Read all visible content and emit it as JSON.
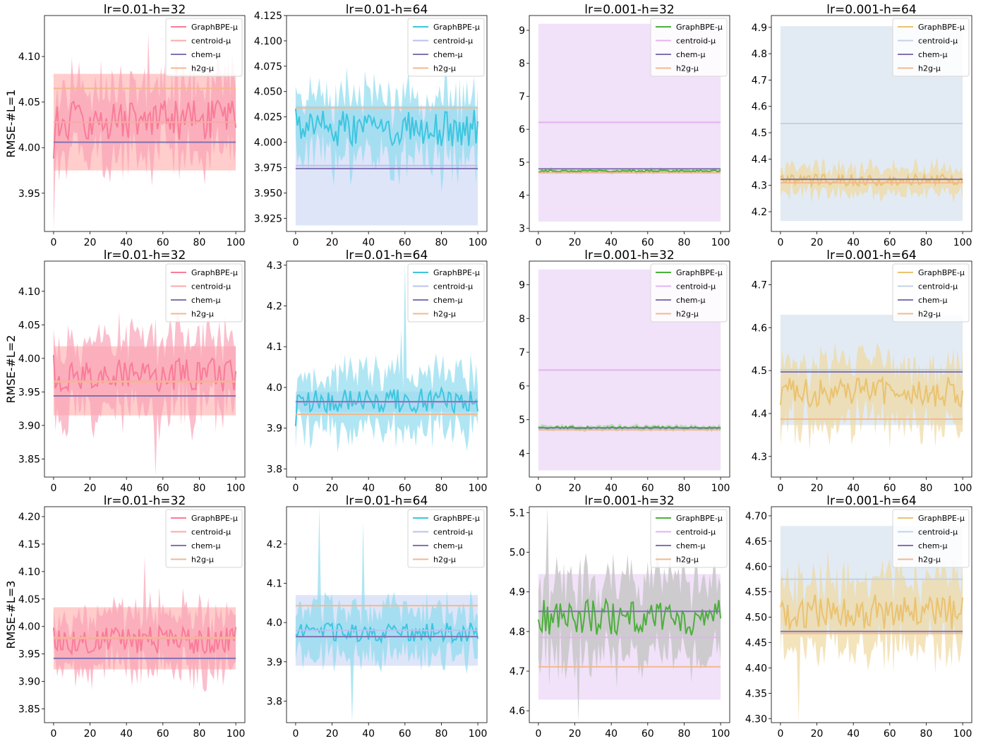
{
  "figure": {
    "row_labels": [
      "RMSE-#L=1",
      "RMSE-#L=2",
      "RMSE-#L=3"
    ],
    "col_titles": [
      "lr=0.01-h=32",
      "lr=0.01-h=64",
      "lr=0.001-h=32",
      "lr=0.001-h=64"
    ],
    "legend_labels": [
      "GraphBPE-μ",
      "centroid-μ",
      "chem-μ",
      "h2g-μ"
    ]
  },
  "chart_data": [
    {
      "type": "line",
      "title": "lr=0.01-h=32",
      "ylabel": "RMSE-#L=1",
      "xlim": [
        -5,
        105
      ],
      "ylim": [
        3.908,
        4.145
      ],
      "xticks": [
        0,
        20,
        40,
        60,
        80,
        100
      ],
      "yticks": [
        3.95,
        4.0,
        4.05,
        4.1
      ],
      "yticklabels": [
        "3.95",
        "4.00",
        "4.05",
        "4.10"
      ],
      "legend": "top-right",
      "colors": {
        "graphbpe": "#f97c97",
        "graphbpe_band": "#f9a3b6",
        "centroid": "#f8aaa8",
        "centroid_band": "#ffc4c2",
        "chem": "#8172b2",
        "h2g": "#f2b98e"
      },
      "series": {
        "graphbpe": {
          "name": "GraphBPE-μ",
          "mean": 4.03,
          "amp": 0.022,
          "band": 0.04,
          "seed": 11,
          "start": 3.988,
          "band_extra": [
            [
              0,
              -0.07
            ],
            [
              52,
              0.05
            ]
          ]
        },
        "centroid": {
          "name": "centroid-μ",
          "value": 4.028,
          "band": [
            3.975,
            4.081
          ]
        },
        "chem": {
          "name": "chem-μ",
          "value": 4.006
        },
        "h2g": {
          "name": "h2g-μ",
          "value": 4.065
        }
      }
    },
    {
      "type": "line",
      "title": "lr=0.01-h=64",
      "xlim": [
        -5,
        105
      ],
      "ylim": [
        3.912,
        4.125
      ],
      "xticks": [
        0,
        20,
        40,
        60,
        80,
        100
      ],
      "yticks": [
        3.925,
        3.95,
        3.975,
        4.0,
        4.025,
        4.05,
        4.075,
        4.1,
        4.125
      ],
      "yticklabels": [
        "3.925",
        "3.950",
        "3.975",
        "4.000",
        "4.025",
        "4.050",
        "4.075",
        "4.100",
        "4.125"
      ],
      "legend": "top-right",
      "colors": {
        "graphbpe": "#3cc6e0",
        "graphbpe_band": "#8fdcee",
        "centroid": "#b6c3ef",
        "centroid_band": "#d8e0f8",
        "chem": "#8172b2",
        "h2g": "#f2b98e"
      },
      "series": {
        "graphbpe": {
          "name": "GraphBPE-μ",
          "mean": 4.014,
          "amp": 0.018,
          "band": 0.032,
          "seed": 23,
          "start": 4.033,
          "band_extra": []
        },
        "centroid": {
          "name": "centroid-μ",
          "value": 3.977,
          "band": [
            3.918,
            4.036
          ]
        },
        "chem": {
          "name": "chem-μ",
          "value": 3.974
        },
        "h2g": {
          "name": "h2g-μ",
          "value": 4.034
        }
      }
    },
    {
      "type": "line",
      "title": "lr=0.001-h=32",
      "xlim": [
        -5,
        105
      ],
      "ylim": [
        2.9,
        9.45
      ],
      "xticks": [
        0,
        20,
        40,
        60,
        80,
        100
      ],
      "yticks": [
        3,
        4,
        5,
        6,
        7,
        8,
        9
      ],
      "yticklabels": [
        "3",
        "4",
        "5",
        "6",
        "7",
        "8",
        "9"
      ],
      "legend": "top-right",
      "colors": {
        "graphbpe": "#4daf3c",
        "graphbpe_band": "#a3d99a",
        "centroid": "#e2b4f0",
        "centroid_band": "#eedcf8",
        "chem": "#8172b2",
        "h2g": "#f2b98e"
      },
      "series": {
        "graphbpe": {
          "name": "GraphBPE-μ",
          "mean": 4.73,
          "amp": 0.035,
          "band": 0.06,
          "seed": 31,
          "start": 4.7,
          "band_extra": []
        },
        "centroid": {
          "name": "centroid-μ",
          "value": 6.21,
          "band": [
            3.2,
            9.2
          ]
        },
        "chem": {
          "name": "chem-μ",
          "value": 4.8
        },
        "h2g": {
          "name": "h2g-μ",
          "value": 4.68
        }
      }
    },
    {
      "type": "line",
      "title": "lr=0.001-h=64",
      "xlim": [
        -5,
        105
      ],
      "ylim": [
        4.125,
        4.945
      ],
      "xticks": [
        0,
        20,
        40,
        60,
        80,
        100
      ],
      "yticks": [
        4.2,
        4.3,
        4.4,
        4.5,
        4.6,
        4.7,
        4.8,
        4.9
      ],
      "yticklabels": [
        "4.2",
        "4.3",
        "4.4",
        "4.5",
        "4.6",
        "4.7",
        "4.8",
        "4.9"
      ],
      "legend": "top-right",
      "colors": {
        "graphbpe": "#ebc26e",
        "graphbpe_band": "#efd9a0",
        "centroid": "#bfd3e6",
        "centroid_band": "#dde8f2",
        "chem": "#8172b2",
        "h2g": "#f2b98e"
      },
      "series": {
        "graphbpe": {
          "name": "GraphBPE-μ",
          "mean": 4.32,
          "amp": 0.022,
          "band": 0.05,
          "seed": 41,
          "start": 4.33,
          "band_extra": []
        },
        "centroid": {
          "name": "centroid-μ",
          "value": 4.535,
          "band": [
            4.165,
            4.905
          ]
        },
        "chem": {
          "name": "chem-μ",
          "value": 4.323
        },
        "h2g": {
          "name": "h2g-μ",
          "value": 4.31
        }
      }
    },
    {
      "type": "line",
      "title": "lr=0.01-h=32",
      "ylabel": "RMSE-#L=2",
      "xlim": [
        -5,
        105
      ],
      "ylim": [
        3.823,
        4.145
      ],
      "xticks": [
        0,
        20,
        40,
        60,
        80,
        100
      ],
      "yticks": [
        3.85,
        3.9,
        3.95,
        4.0,
        4.05,
        4.1
      ],
      "yticklabels": [
        "3.85",
        "3.90",
        "3.95",
        "4.00",
        "4.05",
        "4.10"
      ],
      "legend": "top-right",
      "colors": {
        "graphbpe": "#f97c97",
        "graphbpe_band": "#f9a3b6",
        "centroid": "#f8aaa8",
        "centroid_band": "#ffc4c2",
        "chem": "#8172b2",
        "h2g": "#f2b98e"
      },
      "series": {
        "graphbpe": {
          "name": "GraphBPE-μ",
          "mean": 3.975,
          "amp": 0.025,
          "band": 0.055,
          "seed": 53,
          "start": 4.005,
          "band_extra": [
            [
              8,
              0.06
            ],
            [
              56,
              -0.08
            ]
          ]
        },
        "centroid": {
          "name": "centroid-μ",
          "value": 3.966,
          "band": [
            3.915,
            4.018
          ]
        },
        "chem": {
          "name": "chem-μ",
          "value": 3.944
        },
        "h2g": {
          "name": "h2g-μ",
          "value": 3.965
        }
      }
    },
    {
      "type": "line",
      "title": "lr=0.01-h=64",
      "xlim": [
        -5,
        105
      ],
      "ylim": [
        3.78,
        4.31
      ],
      "xticks": [
        0,
        20,
        40,
        60,
        80,
        100
      ],
      "yticks": [
        3.8,
        3.9,
        4.0,
        4.1,
        4.2,
        4.3
      ],
      "yticklabels": [
        "3.8",
        "3.9",
        "4.0",
        "4.1",
        "4.2",
        "4.3"
      ],
      "legend": "top-right",
      "colors": {
        "graphbpe": "#3cc6e0",
        "graphbpe_band": "#8fdcee",
        "centroid": "#b6c3ef",
        "centroid_band": "#d8e0f8",
        "chem": "#8172b2",
        "h2g": "#f2b98e"
      },
      "series": {
        "graphbpe": {
          "name": "GraphBPE-μ",
          "mean": 3.968,
          "amp": 0.03,
          "band": 0.07,
          "seed": 67,
          "start": 3.905,
          "band_extra": [
            [
              60,
              0.27
            ],
            [
              58,
              0.12
            ]
          ]
        },
        "centroid": {
          "name": "centroid-μ",
          "value": 3.964,
          "band": [
            3.94,
            3.99
          ]
        },
        "chem": {
          "name": "chem-μ",
          "value": 3.965
        },
        "h2g": {
          "name": "h2g-μ",
          "value": 3.934
        }
      }
    },
    {
      "type": "line",
      "title": "lr=0.001-h=32",
      "xlim": [
        -5,
        105
      ],
      "ylim": [
        3.3,
        9.7
      ],
      "xticks": [
        0,
        20,
        40,
        60,
        80,
        100
      ],
      "yticks": [
        4,
        5,
        6,
        7,
        8,
        9
      ],
      "yticklabels": [
        "4",
        "5",
        "6",
        "7",
        "8",
        "9"
      ],
      "legend": "top-right",
      "colors": {
        "graphbpe": "#4daf3c",
        "graphbpe_band": "#a3d99a",
        "centroid": "#e2b4f0",
        "centroid_band": "#eedcf8",
        "chem": "#8172b2",
        "h2g": "#f2b98e"
      },
      "series": {
        "graphbpe": {
          "name": "GraphBPE-μ",
          "mean": 4.76,
          "amp": 0.04,
          "band": 0.07,
          "seed": 71,
          "start": 4.78,
          "band_extra": []
        },
        "centroid": {
          "name": "centroid-μ",
          "value": 6.47,
          "band": [
            3.5,
            9.45
          ]
        },
        "chem": {
          "name": "chem-μ",
          "value": 4.76
        },
        "h2g": {
          "name": "h2g-μ",
          "value": 4.7
        }
      }
    },
    {
      "type": "line",
      "title": "lr=0.001-h=64",
      "xlim": [
        -5,
        105
      ],
      "ylim": [
        4.252,
        4.755
      ],
      "xticks": [
        0,
        20,
        40,
        60,
        80,
        100
      ],
      "yticks": [
        4.3,
        4.4,
        4.5,
        4.6,
        4.7
      ],
      "yticklabels": [
        "4.3",
        "4.4",
        "4.5",
        "4.6",
        "4.7"
      ],
      "legend": "top-right",
      "colors": {
        "graphbpe": "#ebc26e",
        "graphbpe_band": "#efd9a0",
        "centroid": "#bfd3e6",
        "centroid_band": "#dde8f2",
        "chem": "#8172b2",
        "h2g": "#f2b98e"
      },
      "series": {
        "graphbpe": {
          "name": "GraphBPE-μ",
          "mean": 4.45,
          "amp": 0.035,
          "band": 0.075,
          "seed": 83,
          "start": 4.42,
          "band_extra": [
            [
              60,
              -0.09
            ]
          ]
        },
        "centroid": {
          "name": "centroid-μ",
          "value": 4.502,
          "band": [
            4.373,
            4.63
          ]
        },
        "chem": {
          "name": "chem-μ",
          "value": 4.497
        },
        "h2g": {
          "name": "h2g-μ",
          "value": 4.387
        }
      }
    },
    {
      "type": "line",
      "title": "lr=0.01-h=32",
      "ylabel": "RMSE-#L=3",
      "xlim": [
        -5,
        105
      ],
      "ylim": [
        3.825,
        4.218
      ],
      "xticks": [
        0,
        20,
        40,
        60,
        80,
        100
      ],
      "yticks": [
        3.85,
        3.9,
        3.95,
        4.0,
        4.05,
        4.1,
        4.15,
        4.2
      ],
      "yticklabels": [
        "3.85",
        "3.90",
        "3.95",
        "4.00",
        "4.05",
        "4.10",
        "4.15",
        "4.20"
      ],
      "legend": "top-right",
      "colors": {
        "graphbpe": "#f97c97",
        "graphbpe_band": "#f9a3b6",
        "centroid": "#f8aaa8",
        "centroid_band": "#ffc4c2",
        "chem": "#8172b2",
        "h2g": "#f2b98e"
      },
      "series": {
        "graphbpe": {
          "name": "GraphBPE-μ",
          "mean": 3.975,
          "amp": 0.025,
          "band": 0.05,
          "seed": 97,
          "start": 3.998,
          "band_extra": [
            [
              50,
              0.11
            ]
          ]
        },
        "centroid": {
          "name": "centroid-μ",
          "value": 3.978,
          "band": [
            3.922,
            4.035
          ]
        },
        "chem": {
          "name": "chem-μ",
          "value": 3.942
        },
        "h2g": {
          "name": "h2g-μ",
          "value": 3.98
        }
      }
    },
    {
      "type": "line",
      "title": "lr=0.01-h=64",
      "xlim": [
        -5,
        105
      ],
      "ylim": [
        3.745,
        4.295
      ],
      "xticks": [
        0,
        20,
        40,
        60,
        80,
        100
      ],
      "yticks": [
        3.8,
        3.9,
        4.0,
        4.1,
        4.2
      ],
      "yticklabels": [
        "3.8",
        "3.9",
        "4.0",
        "4.1",
        "4.2"
      ],
      "legend": "top-right",
      "colors": {
        "graphbpe": "#3cc6e0",
        "graphbpe_band": "#8fdcee",
        "centroid": "#b6c3ef",
        "centroid_band": "#d8e0f8",
        "chem": "#8172b2",
        "h2g": "#f2b98e"
      },
      "series": {
        "graphbpe": {
          "name": "GraphBPE-μ",
          "mean": 3.975,
          "amp": 0.025,
          "band": 0.06,
          "seed": 103,
          "start": 3.97,
          "band_extra": [
            [
              13,
              0.27
            ],
            [
              37,
              0.24
            ],
            [
              31,
              -0.19
            ]
          ]
        },
        "centroid": {
          "name": "centroid-μ",
          "value": 3.98,
          "band": [
            3.89,
            4.07
          ]
        },
        "chem": {
          "name": "chem-μ",
          "value": 3.964
        },
        "h2g": {
          "name": "h2g-μ",
          "value": 4.043
        }
      }
    },
    {
      "type": "line",
      "title": "lr=0.001-h=32",
      "xlim": [
        -5,
        105
      ],
      "ylim": [
        4.57,
        5.115
      ],
      "xticks": [
        0,
        20,
        40,
        60,
        80,
        100
      ],
      "yticks": [
        4.6,
        4.7,
        4.8,
        4.9,
        5.0,
        5.1
      ],
      "yticklabels": [
        "4.6",
        "4.7",
        "4.8",
        "4.9",
        "5.0",
        "5.1"
      ],
      "legend": "top-right",
      "colors": {
        "graphbpe": "#4daf3c",
        "graphbpe_band": "#9bcf8f",
        "centroid": "#e2b4f0",
        "centroid_band": "#eedcf8",
        "chem": "#8172b2",
        "h2g": "#f2b98e",
        "overlap": "#c9c9c9"
      },
      "series": {
        "graphbpe": {
          "name": "GraphBPE-μ",
          "mean": 4.835,
          "amp": 0.045,
          "band": 0.1,
          "seed": 113,
          "start": 4.83,
          "band_extra": [
            [
              22,
              -0.2
            ],
            [
              5,
              0.2
            ]
          ]
        },
        "centroid": {
          "name": "centroid-μ",
          "value": 4.785,
          "band": [
            4.628,
            4.945
          ]
        },
        "chem": {
          "name": "chem-μ",
          "value": 4.851
        },
        "h2g": {
          "name": "h2g-μ",
          "value": 4.711
        }
      }
    },
    {
      "type": "line",
      "title": "lr=0.001-h=64",
      "xlim": [
        -5,
        105
      ],
      "ylim": [
        4.292,
        4.718
      ],
      "xticks": [
        0,
        20,
        40,
        60,
        80,
        100
      ],
      "yticks": [
        4.3,
        4.35,
        4.4,
        4.45,
        4.5,
        4.55,
        4.6,
        4.65,
        4.7
      ],
      "yticklabels": [
        "4.30",
        "4.35",
        "4.40",
        "4.45",
        "4.50",
        "4.55",
        "4.60",
        "4.65",
        "4.70"
      ],
      "legend": "top-right",
      "colors": {
        "graphbpe": "#ebc26e",
        "graphbpe_band": "#efd9a0",
        "centroid": "#bfd3e6",
        "centroid_band": "#dde8f2",
        "chem": "#8172b2",
        "h2g": "#f2b98e"
      },
      "series": {
        "graphbpe": {
          "name": "GraphBPE-μ",
          "mean": 4.51,
          "amp": 0.035,
          "band": 0.07,
          "seed": 127,
          "start": 4.52,
          "band_extra": [
            [
              10,
              -0.15
            ]
          ]
        },
        "centroid": {
          "name": "centroid-μ",
          "value": 4.575,
          "band": [
            4.472,
            4.68
          ]
        },
        "chem": {
          "name": "chem-μ",
          "value": 4.472
        },
        "h2g": {
          "name": "h2g-μ",
          "value": 4.468
        }
      }
    }
  ]
}
